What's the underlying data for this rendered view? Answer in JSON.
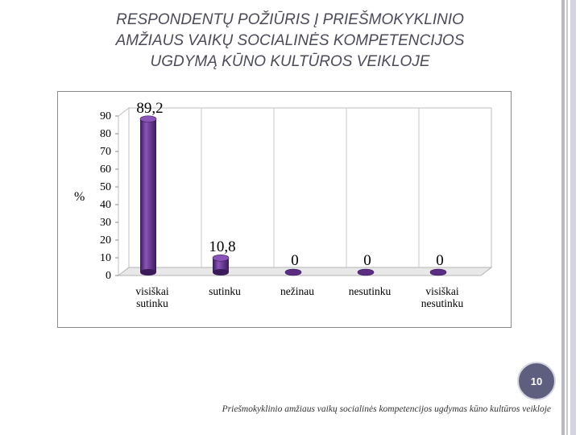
{
  "slide": {
    "title_lines": [
      "RESPONDENTŲ POŽIŪRIS Į PRIEŠMOKYKLINIO",
      "AMŽIAUS VAIKŲ SOCIALINĖS KOMPETENCIJOS",
      "UGDYMĄ KŪNO KULTŪROS VEIKLOJE"
    ],
    "page_number": "10",
    "footer": "Priešmokyklinio amžiaus vaikų socialinės kompetencijos ugdymas kūno kultūros veikloje"
  },
  "colors": {
    "title": "#4b4b5a",
    "bar": "#5b2d82",
    "bar_light": "#8a55b8",
    "bar_dark": "#3b1a5a",
    "page_badge": "#5e5f7e"
  },
  "chart_data": {
    "type": "bar",
    "chart_style": "3d-cylinder",
    "categories": [
      [
        "visiškai",
        "sutinku"
      ],
      [
        "sutinku"
      ],
      [
        "nežinau"
      ],
      [
        "nesutinku"
      ],
      [
        "visiškai",
        "nesutinku"
      ]
    ],
    "values": [
      89.2,
      10.8,
      0,
      0,
      0
    ],
    "data_labels": [
      "89,2",
      "10,8",
      "0",
      "0",
      "0"
    ],
    "ylabel": "%",
    "xlabel": "",
    "title": "",
    "ylim": [
      0,
      90
    ],
    "yticks": [
      0,
      10,
      20,
      30,
      40,
      50,
      60,
      70,
      80,
      90
    ],
    "grid": "vertical"
  }
}
